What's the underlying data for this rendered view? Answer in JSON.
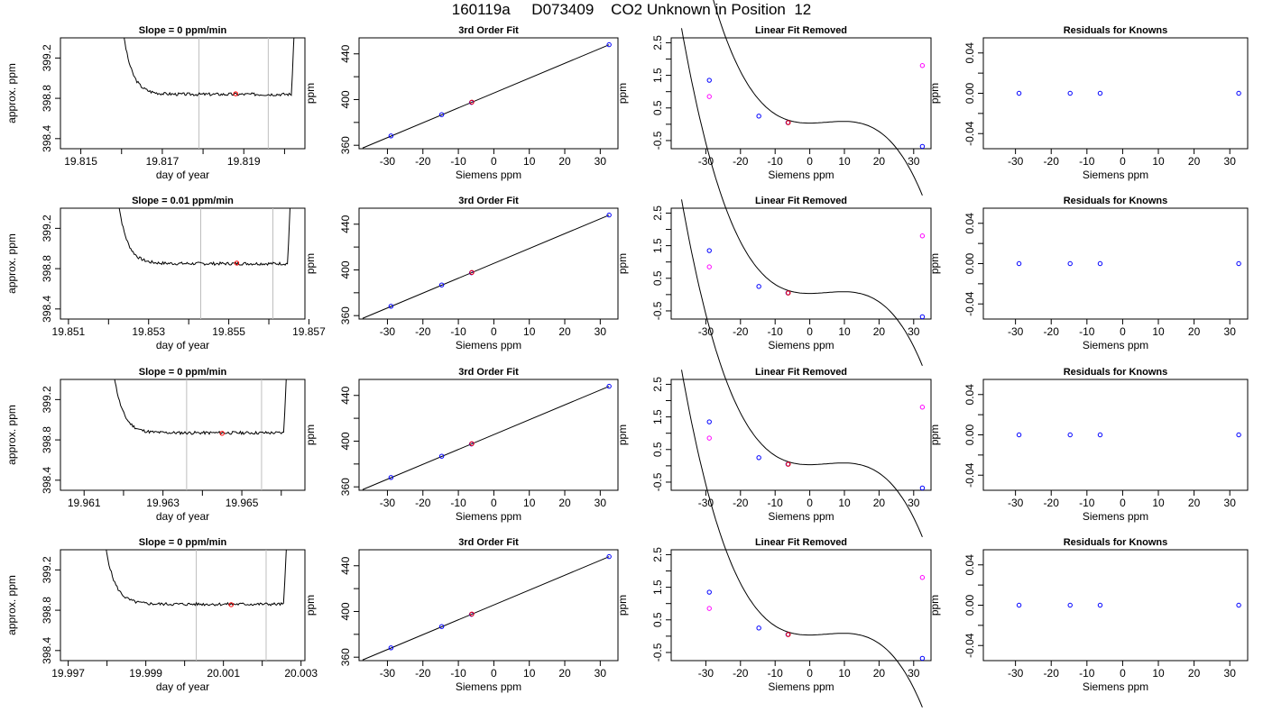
{
  "figure": {
    "title": "160119a     D073409    CO2 Unknown in Position  12"
  },
  "colors": {
    "line": "#000000",
    "axis": "#000000",
    "vline": "#bebebe",
    "blue": "#0000ff",
    "red": "#ff0000",
    "magenta": "#ff00ff"
  },
  "chart_data": [
    {
      "type": "line",
      "row": 0,
      "panel": "approx",
      "title": "Slope =  0  ppm/min",
      "xlabel": "day of year",
      "ylabel": "approx. ppm",
      "xlim": [
        19.8145,
        19.8205
      ],
      "ylim": [
        398.3,
        399.4
      ],
      "xticks": [
        19.815,
        19.817,
        19.819
      ],
      "xminor": [
        19.816,
        19.818,
        19.82
      ],
      "yticks": [
        398.4,
        398.8,
        399.2
      ],
      "start": 19.816,
      "end": 19.8203,
      "flat": 398.84,
      "noise_seed": 3,
      "vlines": [
        19.8179,
        19.8196
      ],
      "marker": {
        "x": 19.8188,
        "y": 398.845
      }
    },
    {
      "type": "line",
      "row": 1,
      "panel": "approx",
      "title": "Slope =  0.01  ppm/min",
      "xlabel": "day of year",
      "ylabel": "approx. ppm",
      "xlim": [
        19.8508,
        19.8569
      ],
      "ylim": [
        398.3,
        399.4
      ],
      "xticks": [
        19.851,
        19.853,
        19.855,
        19.857
      ],
      "xminor": [
        19.852,
        19.854,
        19.856
      ],
      "yticks": [
        398.4,
        398.8,
        399.2
      ],
      "start": 19.8522,
      "end": 19.8566,
      "flat": 398.85,
      "noise_seed": 7,
      "vlines": [
        19.8543,
        19.8561
      ],
      "marker": {
        "x": 19.8552,
        "y": 398.855
      }
    },
    {
      "type": "line",
      "row": 2,
      "panel": "approx",
      "title": "Slope =  0  ppm/min",
      "xlabel": "day of year",
      "ylabel": "approx. ppm",
      "xlim": [
        19.9604,
        19.9666
      ],
      "ylim": [
        398.3,
        399.4
      ],
      "xticks": [
        19.961,
        19.963,
        19.965
      ],
      "xminor": [
        19.962,
        19.964,
        19.966
      ],
      "yticks": [
        398.4,
        398.8,
        399.2
      ],
      "start": 19.9617,
      "end": 19.9662,
      "flat": 398.87,
      "noise_seed": 11,
      "vlines": [
        19.9636,
        19.9655
      ],
      "marker": {
        "x": 19.9645,
        "y": 398.865
      }
    },
    {
      "type": "line",
      "row": 3,
      "panel": "approx",
      "title": "Slope =  0  ppm/min",
      "xlabel": "day of year",
      "ylabel": "approx. ppm",
      "xlim": [
        19.9968,
        20.0031
      ],
      "ylim": [
        398.3,
        399.4
      ],
      "xticks": [
        19.997,
        19.999,
        20.001,
        20.003
      ],
      "xminor": [
        19.998,
        20.0,
        20.002
      ],
      "yticks": [
        398.4,
        398.8,
        399.2
      ],
      "start": 19.9979,
      "end": 20.0027,
      "flat": 398.86,
      "noise_seed": 5,
      "vlines": [
        20.0003,
        20.0021
      ],
      "marker": {
        "x": 20.0012,
        "y": 398.855
      }
    },
    {
      "type": "scatter",
      "panel": "fit",
      "rows": 4,
      "title": "3rd Order Fit",
      "xlabel": "Siemens ppm",
      "ylabel": "ppm",
      "xlim": [
        -38,
        35
      ],
      "ylim": [
        357,
        454
      ],
      "xticks": [
        -30,
        -20,
        -10,
        0,
        10,
        20,
        30
      ],
      "yticks": [
        360,
        400,
        440
      ],
      "yminor": [
        380,
        420
      ],
      "curve": {
        "x0": -37,
        "x1": 32.5,
        "intercept": 405.7,
        "slope": 1.3
      },
      "knowns": [
        {
          "x": -29.0,
          "y": 368.2
        },
        {
          "x": -14.7,
          "y": 386.8
        },
        {
          "x": -6.3,
          "y": 397.5
        },
        {
          "x": 32.5,
          "y": 448.0
        }
      ],
      "unknown": {
        "x": -6.2,
        "y": 397.8
      }
    },
    {
      "type": "scatter",
      "panel": "linres",
      "rows": 4,
      "title": "Linear Fit Removed",
      "xlabel": "Siemens ppm",
      "ylabel": "ppm",
      "xlim": [
        -40,
        35
      ],
      "ylim": [
        -0.75,
        2.65
      ],
      "xticks": [
        -30,
        -20,
        -10,
        0,
        10,
        20,
        30
      ],
      "yticks": [
        -0.5,
        0.5,
        1.5,
        2.5
      ],
      "yminor": [
        0,
        1,
        2
      ],
      "cubic": {
        "coeffs": [
          -0.000116,
          0.00166,
          0.00033,
          0.035
        ],
        "x0": -37,
        "x1": 32.5
      },
      "knowns": [
        {
          "x": -29.0,
          "y": 1.35
        },
        {
          "x": -14.7,
          "y": 0.25
        },
        {
          "x": -6.3,
          "y": 0.05
        },
        {
          "x": 32.5,
          "y": -0.68
        }
      ],
      "unknown": {
        "x": -6.2,
        "y": 0.05
      },
      "magenta": [
        {
          "x": -29.0,
          "y": 0.85
        },
        {
          "x": 32.5,
          "y": 1.8
        }
      ]
    },
    {
      "type": "scatter",
      "panel": "resid",
      "rows": 4,
      "title": "Residuals for Knowns",
      "xlabel": "Siemens ppm",
      "ylabel": "ppm",
      "xlim": [
        -39,
        35
      ],
      "ylim": [
        -0.055,
        0.055
      ],
      "xticks": [
        -30,
        -20,
        -10,
        0,
        10,
        20,
        30
      ],
      "yticks": [
        -0.04,
        0.0,
        0.04
      ],
      "yminor": [
        -0.02,
        0.02
      ],
      "knowns": [
        {
          "x": -29.0,
          "y": 0.0
        },
        {
          "x": -14.7,
          "y": 0.0
        },
        {
          "x": -6.3,
          "y": 0.0
        },
        {
          "x": 32.5,
          "y": 0.0
        }
      ]
    }
  ]
}
